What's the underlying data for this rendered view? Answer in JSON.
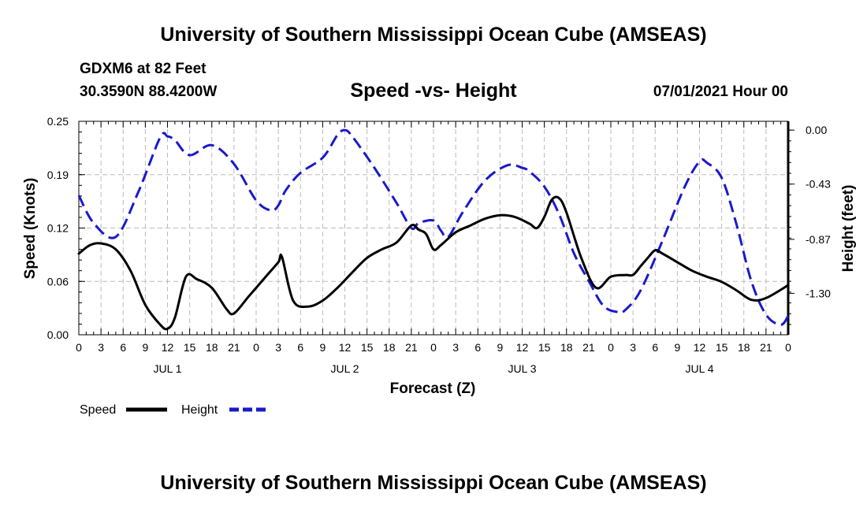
{
  "header": {
    "title": "University of Southern Mississippi Ocean Cube (AMSEAS)",
    "station": "GDXM6 at 82 Feet",
    "coords": "30.3590N  88.4200W",
    "plot_title": "Speed -vs- Height",
    "datetime": "07/01/2021 Hour 00"
  },
  "footer": {
    "title": "University of Southern Mississippi Ocean Cube (AMSEAS)"
  },
  "colors": {
    "speed": "#000000",
    "height": "#1a1acc",
    "grid": "#bbbbbb"
  },
  "chart_data": {
    "type": "line",
    "title": "Speed -vs- Height",
    "xlabel": "Forecast (Z)",
    "ylabel_left": "Speed (Knots)",
    "ylabel_right": "Height (feet)",
    "x_range": [
      0,
      96
    ],
    "ylim_left": [
      0,
      0.25
    ],
    "ylim_right": [
      -1.63,
      0.07
    ],
    "x_ticks": [
      {
        "h": 0,
        "label": "0"
      },
      {
        "h": 3,
        "label": "3"
      },
      {
        "h": 6,
        "label": "6"
      },
      {
        "h": 9,
        "label": "9"
      },
      {
        "h": 12,
        "label": "12"
      },
      {
        "h": 15,
        "label": "15"
      },
      {
        "h": 18,
        "label": "18"
      },
      {
        "h": 21,
        "label": "21"
      },
      {
        "h": 24,
        "label": "0"
      },
      {
        "h": 27,
        "label": "3"
      },
      {
        "h": 30,
        "label": "6"
      },
      {
        "h": 33,
        "label": "9"
      },
      {
        "h": 36,
        "label": "12"
      },
      {
        "h": 39,
        "label": "15"
      },
      {
        "h": 42,
        "label": "18"
      },
      {
        "h": 45,
        "label": "21"
      },
      {
        "h": 48,
        "label": "0"
      },
      {
        "h": 51,
        "label": "3"
      },
      {
        "h": 54,
        "label": "6"
      },
      {
        "h": 57,
        "label": "9"
      },
      {
        "h": 60,
        "label": "12"
      },
      {
        "h": 63,
        "label": "15"
      },
      {
        "h": 66,
        "label": "18"
      },
      {
        "h": 69,
        "label": "21"
      },
      {
        "h": 72,
        "label": "0"
      },
      {
        "h": 75,
        "label": "3"
      },
      {
        "h": 78,
        "label": "6"
      },
      {
        "h": 81,
        "label": "9"
      },
      {
        "h": 84,
        "label": "12"
      },
      {
        "h": 87,
        "label": "15"
      },
      {
        "h": 90,
        "label": "18"
      },
      {
        "h": 93,
        "label": "21"
      },
      {
        "h": 96,
        "label": "0"
      }
    ],
    "day_labels": [
      {
        "h": 12,
        "label": "JUL 1"
      },
      {
        "h": 36,
        "label": "JUL 2"
      },
      {
        "h": 60,
        "label": "JUL 3"
      },
      {
        "h": 84,
        "label": "JUL 4"
      }
    ],
    "y_left_ticks": [
      {
        "v": 0.0,
        "label": "0.00"
      },
      {
        "v": 0.0625,
        "label": "0.06"
      },
      {
        "v": 0.125,
        "label": "0.12"
      },
      {
        "v": 0.1875,
        "label": "0.19"
      },
      {
        "v": 0.25,
        "label": "0.25"
      }
    ],
    "y_right_ticks": [
      {
        "v": 0.0,
        "label": "0.00"
      },
      {
        "v": -0.43,
        "label": "-0.43"
      },
      {
        "v": -0.87,
        "label": "-0.87"
      },
      {
        "v": -1.3,
        "label": "-1.30"
      }
    ],
    "series": [
      {
        "name": "Speed",
        "axis": "left",
        "style": "solid",
        "x": [
          0,
          1.5,
          3,
          5,
          7,
          9,
          11,
          12,
          13,
          14.5,
          16,
          18,
          20,
          21,
          23,
          25,
          27,
          27.5,
          29,
          31,
          33,
          35,
          37,
          39,
          41,
          43,
          45,
          46,
          47,
          48,
          49,
          51,
          53,
          55,
          57,
          59,
          61,
          62,
          63,
          64,
          65,
          66,
          68,
          70,
          72,
          74,
          75,
          76,
          77,
          78,
          79,
          81,
          83,
          85,
          87,
          89,
          91,
          93,
          96
        ],
        "y": [
          0.095,
          0.105,
          0.107,
          0.1,
          0.075,
          0.035,
          0.012,
          0.007,
          0.02,
          0.068,
          0.065,
          0.055,
          0.03,
          0.025,
          0.045,
          0.065,
          0.085,
          0.091,
          0.04,
          0.033,
          0.04,
          0.055,
          0.073,
          0.09,
          0.1,
          0.108,
          0.128,
          0.123,
          0.118,
          0.1,
          0.105,
          0.12,
          0.128,
          0.136,
          0.14,
          0.138,
          0.13,
          0.125,
          0.138,
          0.158,
          0.16,
          0.143,
          0.09,
          0.055,
          0.068,
          0.07,
          0.07,
          0.08,
          0.09,
          0.099,
          0.095,
          0.085,
          0.075,
          0.068,
          0.062,
          0.052,
          0.041,
          0.043,
          0.058
        ]
      },
      {
        "name": "Height",
        "axis": "right",
        "style": "dashed",
        "x": [
          0,
          2,
          5,
          8,
          11,
          12,
          13,
          15,
          18,
          21,
          24,
          26,
          27,
          28,
          30,
          33,
          35,
          36,
          37,
          40,
          43,
          45,
          46,
          48,
          49,
          50,
          52,
          55,
          58,
          60,
          61,
          63,
          65,
          67,
          69,
          71,
          73,
          74,
          76,
          79,
          82,
          84,
          85,
          87,
          89,
          91,
          93,
          95,
          96
        ],
        "y": [
          -0.52,
          -0.74,
          -0.85,
          -0.5,
          -0.06,
          -0.05,
          -0.08,
          -0.2,
          -0.12,
          -0.27,
          -0.56,
          -0.64,
          -0.6,
          -0.48,
          -0.34,
          -0.22,
          -0.04,
          0.0,
          -0.05,
          -0.3,
          -0.58,
          -0.78,
          -0.74,
          -0.72,
          -0.8,
          -0.85,
          -0.65,
          -0.4,
          -0.28,
          -0.3,
          -0.33,
          -0.45,
          -0.67,
          -0.98,
          -1.2,
          -1.4,
          -1.45,
          -1.43,
          -1.28,
          -0.88,
          -0.45,
          -0.25,
          -0.26,
          -0.38,
          -0.75,
          -1.2,
          -1.47,
          -1.55,
          -1.48
        ]
      }
    ],
    "legend": [
      {
        "name": "Speed",
        "label": "Speed",
        "style": "solid"
      },
      {
        "name": "Height",
        "label": "Height",
        "style": "dashed"
      }
    ],
    "grid": true
  }
}
